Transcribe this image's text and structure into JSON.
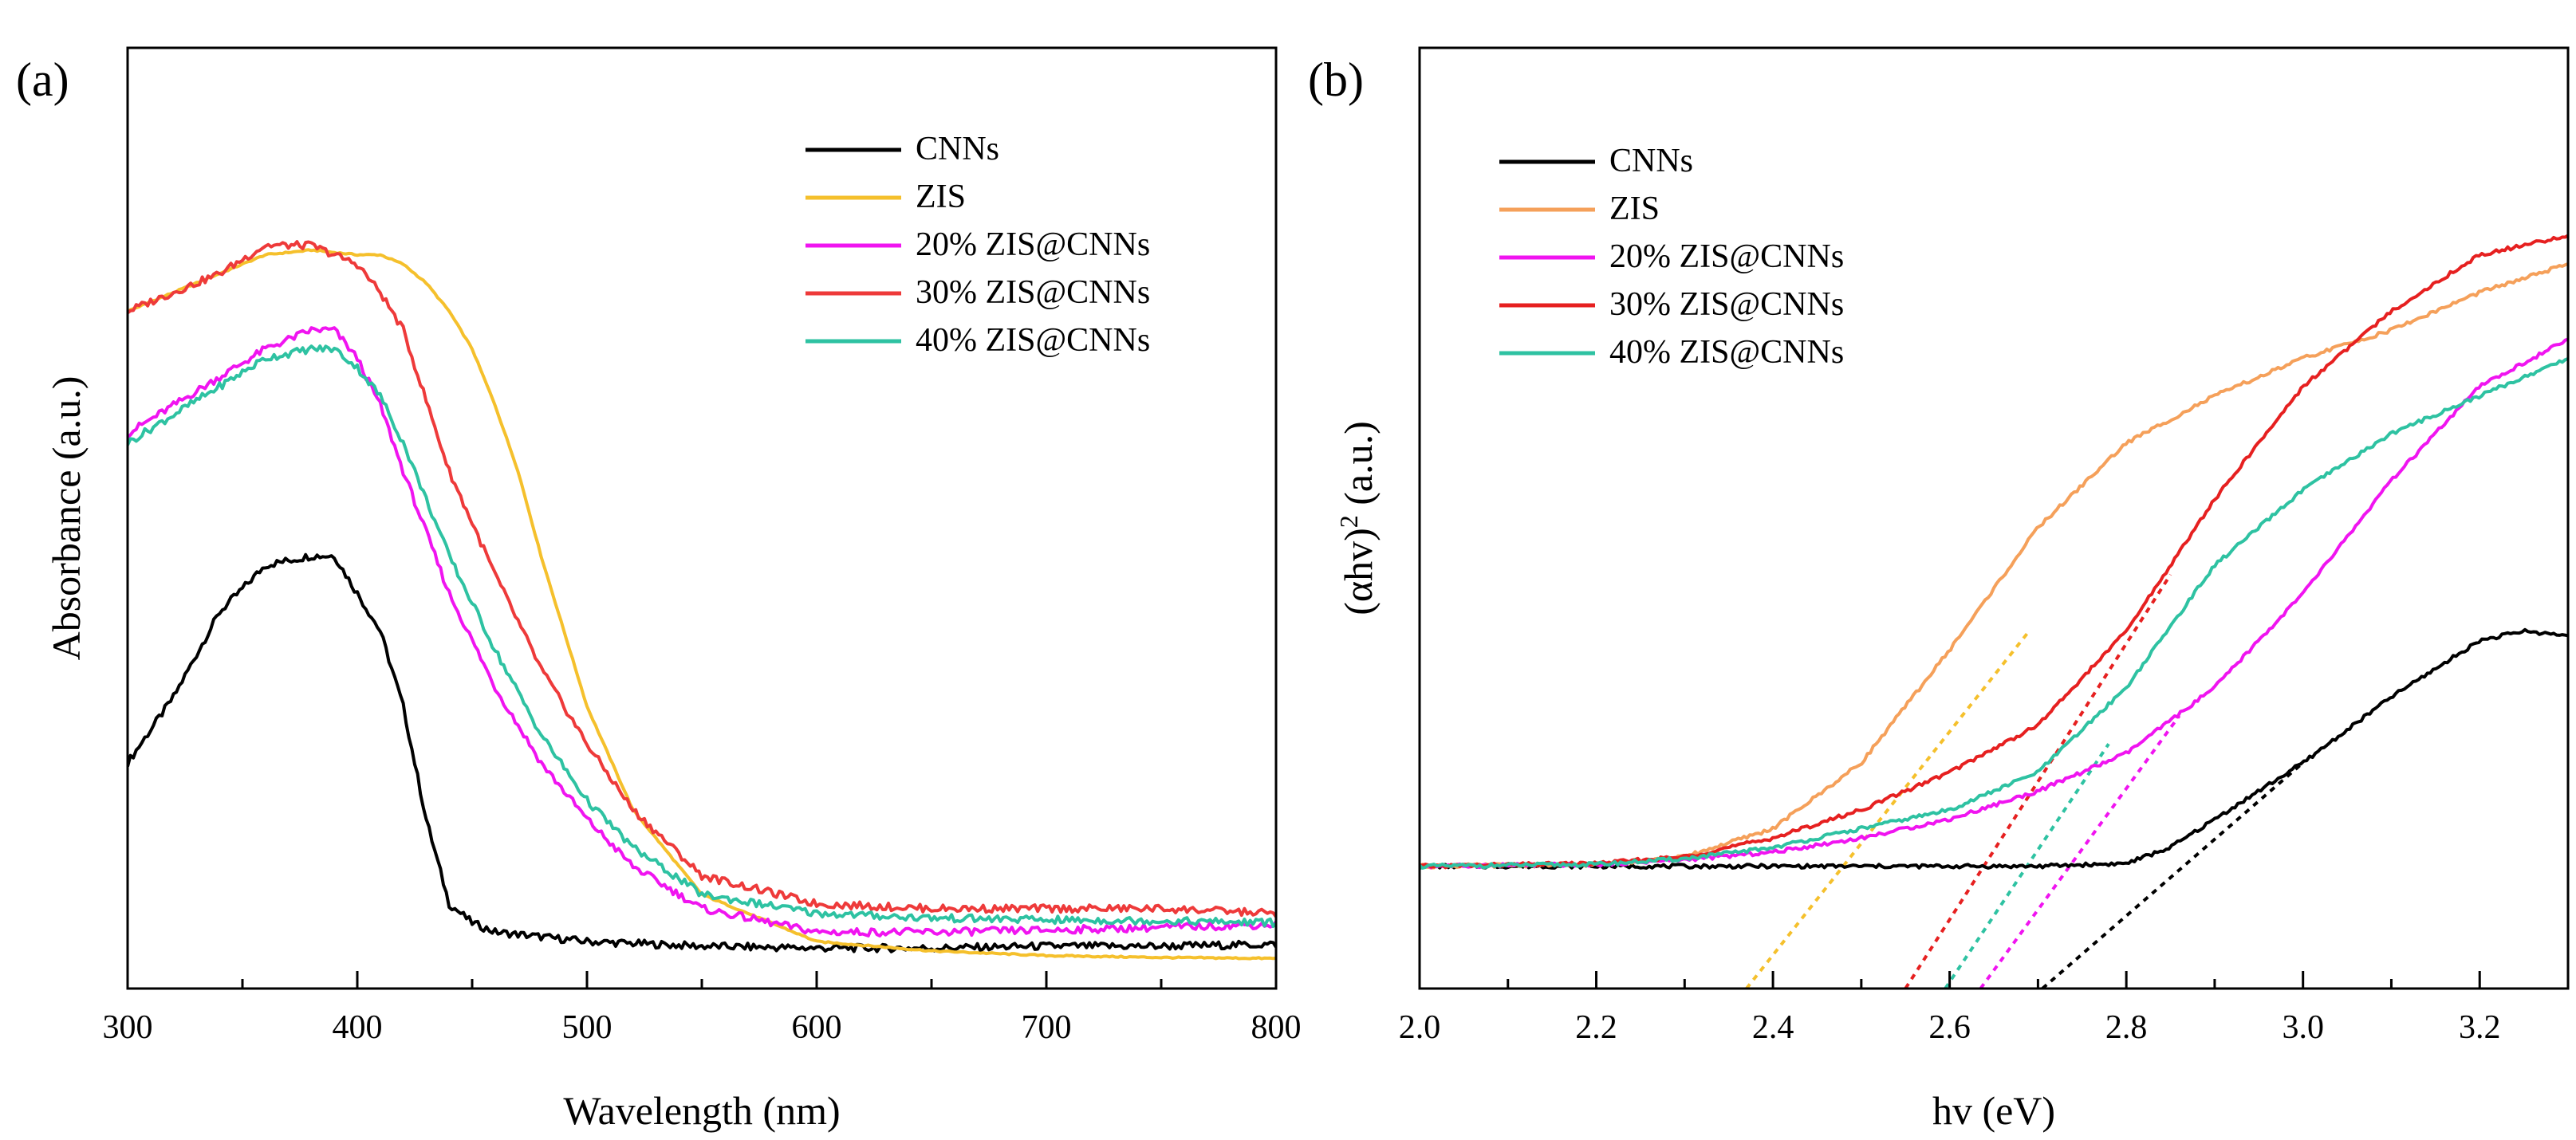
{
  "panels": [
    {
      "id": "a",
      "panel_label": "(a)",
      "xlabel": "Wavelength (nm)",
      "ylabel": "Absorbance (a.u.)"
    },
    {
      "id": "b",
      "panel_label": "(b)",
      "xlabel": "hv (eV)",
      "ylabel_main": "(αhv)",
      "ylabel_sup": "2",
      "ylabel_tail": " (a.u.)"
    }
  ],
  "chart_data": [
    {
      "type": "line",
      "panel": "(a)",
      "title": "",
      "xlabel": "Wavelength (nm)",
      "ylabel": "Absorbance (a.u.)",
      "xlim": [
        300,
        800
      ],
      "ylim": [
        0,
        1
      ],
      "xticks": [
        300,
        400,
        500,
        600,
        700,
        800
      ],
      "xtick_labels": [
        "300",
        "400",
        "500",
        "600",
        "700",
        "800"
      ],
      "yticks_shown": false,
      "grid": false,
      "legend_position": "top-right",
      "series": [
        {
          "name": "CNNs",
          "color": "#000000",
          "x": [
            300,
            320,
            340,
            360,
            380,
            390,
            400,
            410,
            420,
            430,
            440,
            450,
            460,
            480,
            500,
            550,
            600,
            650,
            700,
            750,
            800
          ],
          "y": [
            0.24,
            0.31,
            0.4,
            0.45,
            0.46,
            0.46,
            0.42,
            0.38,
            0.3,
            0.18,
            0.09,
            0.07,
            0.06,
            0.055,
            0.05,
            0.045,
            0.043,
            0.043,
            0.045,
            0.045,
            0.047
          ]
        },
        {
          "name": "ZIS",
          "color": "#F5C02C",
          "x": [
            300,
            320,
            340,
            360,
            380,
            400,
            410,
            420,
            430,
            440,
            450,
            460,
            470,
            480,
            490,
            500,
            520,
            550,
            600,
            650,
            700,
            750,
            800
          ],
          "y": [
            0.72,
            0.74,
            0.76,
            0.78,
            0.785,
            0.78,
            0.78,
            0.77,
            0.75,
            0.72,
            0.68,
            0.62,
            0.55,
            0.46,
            0.38,
            0.3,
            0.19,
            0.1,
            0.05,
            0.04,
            0.035,
            0.033,
            0.032
          ]
        },
        {
          "name": "20% ZIS@CNNs",
          "color": "#F014F0",
          "x": [
            300,
            320,
            340,
            360,
            380,
            390,
            400,
            410,
            420,
            440,
            460,
            480,
            500,
            520,
            550,
            600,
            650,
            700,
            750,
            800
          ],
          "y": [
            0.59,
            0.62,
            0.65,
            0.68,
            0.7,
            0.7,
            0.67,
            0.62,
            0.55,
            0.42,
            0.32,
            0.24,
            0.18,
            0.13,
            0.085,
            0.06,
            0.06,
            0.062,
            0.065,
            0.068
          ]
        },
        {
          "name": "30% ZIS@CNNs",
          "color": "#EE3A3A",
          "x": [
            300,
            320,
            340,
            360,
            380,
            400,
            410,
            420,
            440,
            460,
            480,
            500,
            520,
            550,
            600,
            650,
            700,
            750,
            800
          ],
          "y": [
            0.72,
            0.74,
            0.76,
            0.79,
            0.79,
            0.77,
            0.74,
            0.7,
            0.55,
            0.44,
            0.34,
            0.26,
            0.19,
            0.12,
            0.09,
            0.085,
            0.085,
            0.085,
            0.08
          ]
        },
        {
          "name": "40% ZIS@CNNs",
          "color": "#2EC2A2",
          "x": [
            300,
            320,
            340,
            360,
            380,
            390,
            400,
            410,
            420,
            440,
            460,
            480,
            500,
            520,
            550,
            600,
            650,
            700,
            750,
            800
          ],
          "y": [
            0.58,
            0.61,
            0.64,
            0.67,
            0.68,
            0.68,
            0.66,
            0.63,
            0.58,
            0.46,
            0.36,
            0.27,
            0.2,
            0.15,
            0.1,
            0.08,
            0.075,
            0.073,
            0.072,
            0.07
          ]
        }
      ]
    },
    {
      "type": "line",
      "panel": "(b)",
      "title": "",
      "xlabel": "hv (eV)",
      "ylabel": "(αhv)2 (a.u.)",
      "xlim": [
        2.0,
        3.3
      ],
      "ylim": [
        0,
        1
      ],
      "xticks": [
        2.0,
        2.2,
        2.4,
        2.6,
        2.8,
        3.0,
        3.2
      ],
      "xtick_labels": [
        "2.0",
        "2.2",
        "2.4",
        "2.6",
        "2.8",
        "3.0",
        "3.2"
      ],
      "yticks_shown": false,
      "grid": false,
      "legend_position": "top-left",
      "series": [
        {
          "name": "CNNs",
          "color": "#000000",
          "x": [
            2.0,
            2.5,
            2.7,
            2.8,
            2.85,
            2.9,
            3.0,
            3.1,
            3.2,
            3.25,
            3.3
          ],
          "y": [
            0.13,
            0.13,
            0.13,
            0.133,
            0.15,
            0.18,
            0.24,
            0.31,
            0.37,
            0.38,
            0.375
          ]
        },
        {
          "name": "ZIS",
          "color": "#F5A05A",
          "x": [
            2.0,
            2.2,
            2.3,
            2.4,
            2.5,
            2.6,
            2.7,
            2.8,
            2.9,
            3.0,
            3.1,
            3.2,
            3.3
          ],
          "y": [
            0.13,
            0.132,
            0.14,
            0.17,
            0.24,
            0.36,
            0.49,
            0.58,
            0.63,
            0.67,
            0.7,
            0.74,
            0.77
          ]
        },
        {
          "name": "20% ZIS@CNNs",
          "color": "#F014F0",
          "x": [
            2.0,
            2.2,
            2.3,
            2.4,
            2.5,
            2.6,
            2.7,
            2.8,
            2.9,
            3.0,
            3.1,
            3.2,
            3.3
          ],
          "y": [
            0.13,
            0.132,
            0.137,
            0.145,
            0.16,
            0.18,
            0.21,
            0.25,
            0.32,
            0.42,
            0.54,
            0.64,
            0.69
          ]
        },
        {
          "name": "30% ZIS@CNNs",
          "color": "#E62020",
          "x": [
            2.0,
            2.2,
            2.3,
            2.4,
            2.5,
            2.6,
            2.7,
            2.8,
            2.9,
            3.0,
            3.1,
            3.2,
            3.3
          ],
          "y": [
            0.13,
            0.133,
            0.14,
            0.16,
            0.19,
            0.23,
            0.28,
            0.38,
            0.52,
            0.64,
            0.72,
            0.78,
            0.8
          ]
        },
        {
          "name": "40% ZIS@CNNs",
          "color": "#2EC2A2",
          "x": [
            2.0,
            2.2,
            2.3,
            2.4,
            2.5,
            2.6,
            2.7,
            2.8,
            2.9,
            3.0,
            3.1,
            3.2,
            3.3
          ],
          "y": [
            0.13,
            0.132,
            0.138,
            0.15,
            0.17,
            0.19,
            0.23,
            0.32,
            0.45,
            0.53,
            0.59,
            0.63,
            0.67
          ]
        }
      ],
      "tangent_lines": [
        {
          "series": "CNNs",
          "color": "#000000",
          "x": [
            2.705,
            3.0
          ],
          "y": [
            0.0,
            0.24
          ]
        },
        {
          "series": "ZIS",
          "color": "#F5C02C",
          "x": [
            2.37,
            2.69
          ],
          "y": [
            0.0,
            0.38
          ]
        },
        {
          "series": "20% ZIS@CNNs",
          "color": "#F014F0",
          "x": [
            2.635,
            2.86
          ],
          "y": [
            0.0,
            0.29
          ]
        },
        {
          "series": "30% ZIS@CNNs",
          "color": "#E62020",
          "x": [
            2.55,
            2.85
          ],
          "y": [
            0.0,
            0.44
          ]
        },
        {
          "series": "40% ZIS@CNNs",
          "color": "#2EC2A2",
          "x": [
            2.595,
            2.78
          ],
          "y": [
            0.0,
            0.26
          ]
        }
      ]
    }
  ]
}
